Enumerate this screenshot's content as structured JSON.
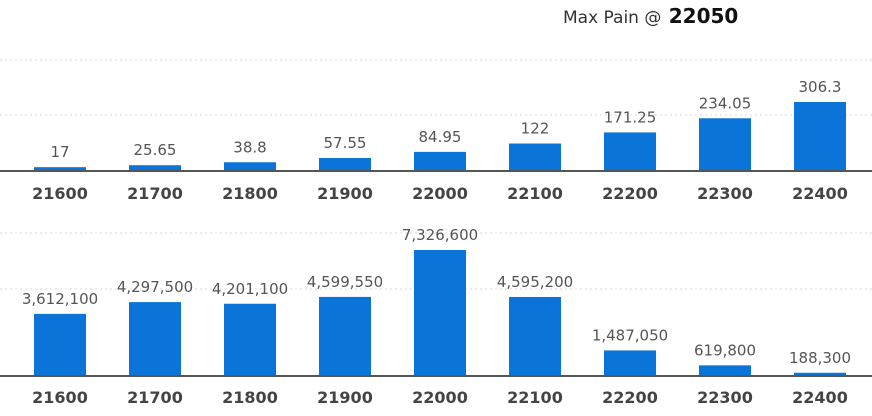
{
  "header": {
    "title_label": "Max Pain @",
    "title_value": "22050"
  },
  "colors": {
    "bar": "#0a74d8",
    "axis": "#555555",
    "grid": "#d9d9d9",
    "label": "#555555",
    "tick": "#444444"
  },
  "chart_data": [
    {
      "type": "bar",
      "title": "",
      "xlabel": "",
      "ylabel": "",
      "grid": true,
      "categories": [
        "21600",
        "21700",
        "21800",
        "21900",
        "22000",
        "22100",
        "22200",
        "22300",
        "22400"
      ],
      "values": [
        17,
        25.65,
        38.8,
        57.55,
        84.95,
        122,
        171.25,
        234.05,
        306.3
      ],
      "labels": [
        "17",
        "25.65",
        "38.8",
        "57.55",
        "84.95",
        "122",
        "171.25",
        "234.05",
        "306.3"
      ],
      "ylim": [
        0,
        306.3
      ]
    },
    {
      "type": "bar",
      "title": "",
      "xlabel": "",
      "ylabel": "",
      "grid": true,
      "categories": [
        "21600",
        "21700",
        "21800",
        "21900",
        "22000",
        "22100",
        "22200",
        "22300",
        "22400"
      ],
      "values": [
        3612100,
        4297500,
        4201100,
        4599550,
        7326600,
        4595200,
        1487050,
        619800,
        188300
      ],
      "labels": [
        "3,612,100",
        "4,297,500",
        "4,201,100",
        "4,599,550",
        "7,326,600",
        "4,595,200",
        "1,487,050",
        "619,800",
        "188,300"
      ],
      "ylim": [
        0,
        7326600
      ]
    }
  ]
}
